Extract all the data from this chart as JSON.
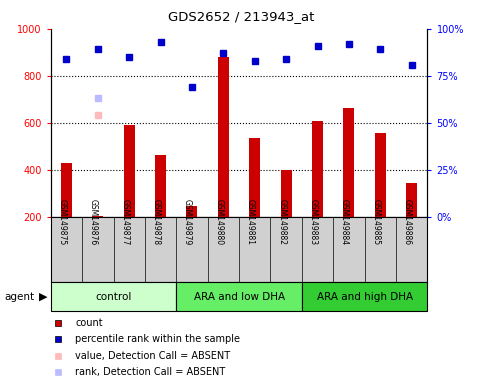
{
  "title": "GDS2652 / 213943_at",
  "samples": [
    "GSM149875",
    "GSM149876",
    "GSM149877",
    "GSM149878",
    "GSM149879",
    "GSM149880",
    "GSM149881",
    "GSM149882",
    "GSM149883",
    "GSM149884",
    "GSM149885",
    "GSM149886"
  ],
  "counts": [
    430,
    205,
    590,
    465,
    245,
    880,
    535,
    400,
    610,
    665,
    555,
    345
  ],
  "percentile_ranks": [
    84,
    89,
    85,
    93,
    69,
    87,
    83,
    84,
    91,
    92,
    89,
    81
  ],
  "absent_value_idx": 1,
  "absent_value_val": 635,
  "absent_rank_idx": 1,
  "absent_rank_val": 63,
  "groups": [
    {
      "label": "control",
      "start": 0,
      "end": 4,
      "color": "#ccffcc"
    },
    {
      "label": "ARA and low DHA",
      "start": 4,
      "end": 8,
      "color": "#66ee66"
    },
    {
      "label": "ARA and high DHA",
      "start": 8,
      "end": 12,
      "color": "#33cc33"
    }
  ],
  "ylim_left": [
    200,
    1000
  ],
  "ylim_right": [
    0,
    100
  ],
  "bar_color": "#cc0000",
  "dot_color": "#0000cc",
  "absent_value_color": "#ffbbbb",
  "absent_rank_color": "#bbbbff",
  "dotted_lines": [
    400,
    600,
    800
  ],
  "bar_width": 0.35,
  "plot_bg_color": "#ffffff",
  "label_bg_color": "#d0d0d0"
}
